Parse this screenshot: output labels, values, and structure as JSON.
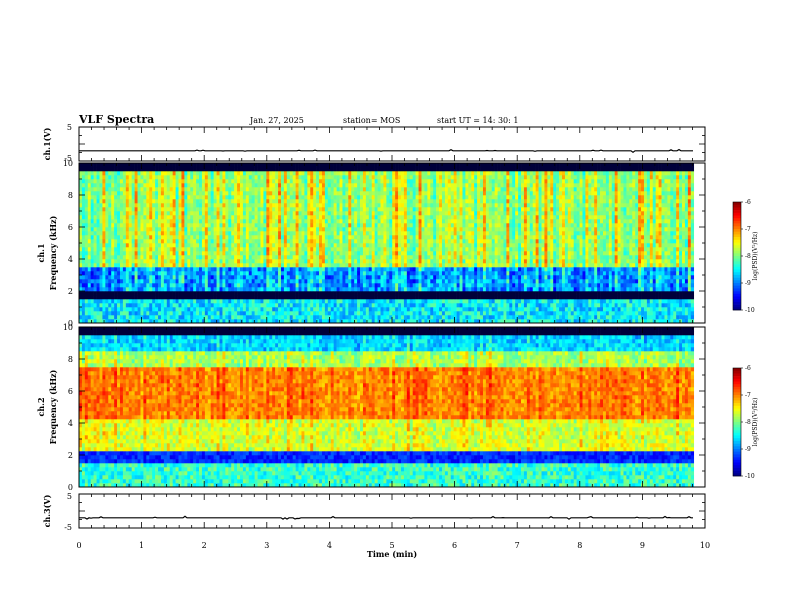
{
  "header": {
    "title": "VLF Spectra",
    "date": "Jan. 27, 2025",
    "station": "station= MOS",
    "start": "start  UT =   14: 30: 1"
  },
  "chart_data": [
    {
      "type": "line",
      "name_id": "ch1-voltage",
      "ylabel": "ch.1(V)",
      "ylim": [
        -5,
        5
      ],
      "yticks": [
        "5",
        "-5"
      ],
      "xlim": [
        0,
        10
      ],
      "baseline": -2.0
    },
    {
      "type": "heatmap",
      "name_id": "ch1-spectrogram",
      "ylabel_line1": "ch.1",
      "ylabel_line2": "Frequency (kHz)",
      "ylim": [
        0,
        10
      ],
      "yticks": [
        "0",
        "2",
        "4",
        "6",
        "8",
        "10"
      ],
      "xlim": [
        0,
        9.82
      ],
      "colorbar": {
        "label": "log(PSD)(V²/Hz)",
        "ticks": [
          "-6",
          "-7",
          "-8",
          "-9",
          "-10"
        ],
        "range": [
          -10,
          -6
        ]
      }
    },
    {
      "type": "heatmap",
      "name_id": "ch2-spectrogram",
      "ylabel_line1": "ch.2",
      "ylabel_line2": "Frequency (kHz)",
      "ylim": [
        0,
        10
      ],
      "yticks": [
        "0",
        "2",
        "4",
        "6",
        "8",
        "10"
      ],
      "xlim": [
        0,
        9.82
      ],
      "colorbar": {
        "label": "log(PSD)(V²/Hz)",
        "ticks": [
          "-6",
          "-7",
          "-8",
          "-9",
          "-10"
        ],
        "range": [
          -10,
          -6
        ]
      }
    },
    {
      "type": "line",
      "name_id": "ch3-voltage",
      "ylabel": "ch.3(V)",
      "ylim": [
        -5,
        5
      ],
      "yticks": [
        "5",
        "-5"
      ],
      "xlim": [
        0,
        10
      ],
      "baseline": -2.0,
      "xlabel": "Time (min)",
      "xticks": [
        "0",
        "1",
        "2",
        "3",
        "4",
        "5",
        "6",
        "7",
        "8",
        "9",
        "10"
      ]
    }
  ]
}
